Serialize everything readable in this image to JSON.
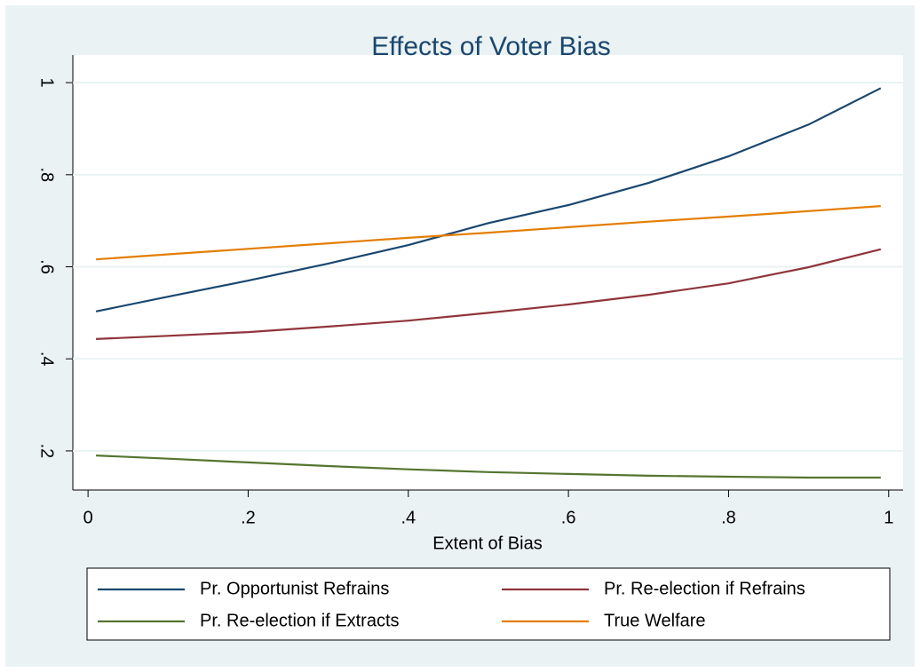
{
  "chart_data": {
    "type": "line",
    "title": "Effects of Voter Bias",
    "x_label": "Extent of Bias",
    "x": [
      0.01,
      0.1,
      0.2,
      0.3,
      0.4,
      0.5,
      0.6,
      0.7,
      0.8,
      0.9,
      0.99
    ],
    "series": [
      {
        "name": "Pr. Opportunist Refrains",
        "color": "#1a476f",
        "values": [
          0.503,
          0.535,
          0.57,
          0.607,
          0.647,
          0.695,
          0.734,
          0.782,
          0.84,
          0.909,
          0.988
        ]
      },
      {
        "name": "Pr. Re-election if Refrains",
        "color": "#90353b",
        "values": [
          0.443,
          0.45,
          0.458,
          0.47,
          0.483,
          0.5,
          0.518,
          0.539,
          0.564,
          0.599,
          0.638
        ]
      },
      {
        "name": "Pr. Re-election if Extracts",
        "color": "#55752f",
        "values": [
          0.19,
          0.183,
          0.175,
          0.167,
          0.16,
          0.154,
          0.15,
          0.146,
          0.144,
          0.142,
          0.142
        ]
      },
      {
        "name": "True Welfare",
        "color": "#e37e00",
        "values": [
          0.616,
          0.627,
          0.639,
          0.651,
          0.663,
          0.674,
          0.686,
          0.698,
          0.709,
          0.721,
          0.732
        ]
      }
    ],
    "xlim": [
      -0.019,
      1.018
    ],
    "ylim": [
      0.115,
      1.06
    ],
    "xticks": [
      0,
      {
        "value": 0.2,
        "label": ".2"
      },
      {
        "value": 0.4,
        "label": ".4"
      },
      {
        "value": 0.6,
        "label": ".6"
      },
      {
        "value": 0.8,
        "label": ".8"
      },
      1
    ],
    "yticks": [
      {
        "value": 0.2,
        "label": ".2"
      },
      {
        "value": 0.4,
        "label": ".4"
      },
      {
        "value": 0.6,
        "label": ".6"
      },
      {
        "value": 0.8,
        "label": ".8"
      },
      1
    ],
    "grid": true
  }
}
